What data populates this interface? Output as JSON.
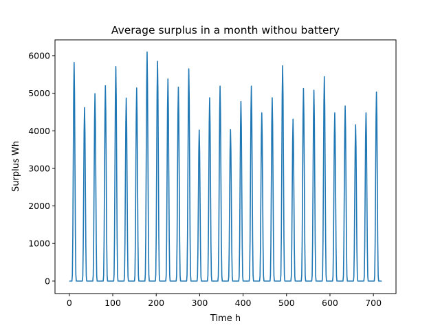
{
  "chart_data": {
    "type": "line",
    "title": "Average surplus in a month withou battery",
    "xlabel": "Time h",
    "ylabel": "Surplus Wh",
    "xlim": [
      -33,
      752
    ],
    "ylim": [
      -332,
      6420
    ],
    "xticks": [
      0,
      100,
      200,
      300,
      400,
      500,
      600,
      700
    ],
    "yticks": [
      0,
      1000,
      2000,
      3000,
      4000,
      5000,
      6000
    ],
    "grid": false,
    "legend": "none",
    "color": "#1f77b4",
    "series": [
      {
        "peak_hours": [
          11,
          35,
          59,
          83,
          107,
          131,
          155,
          179,
          203,
          227,
          251,
          275,
          299,
          323,
          347,
          371,
          395,
          419,
          443,
          467,
          491,
          515,
          539,
          563,
          587,
          611,
          635,
          659,
          683,
          707
        ],
        "peak_values": [
          5820,
          4620,
          4990,
          5200,
          5710,
          4870,
          5140,
          6100,
          5850,
          5380,
          5160,
          5650,
          4020,
          4880,
          5190,
          4030,
          4780,
          5190,
          4480,
          4880,
          5730,
          4310,
          5130,
          5080,
          5440,
          4480,
          4660,
          4160,
          4480,
          5030
        ],
        "x_start": 0,
        "x_end": 719,
        "baseline": 0
      }
    ]
  }
}
